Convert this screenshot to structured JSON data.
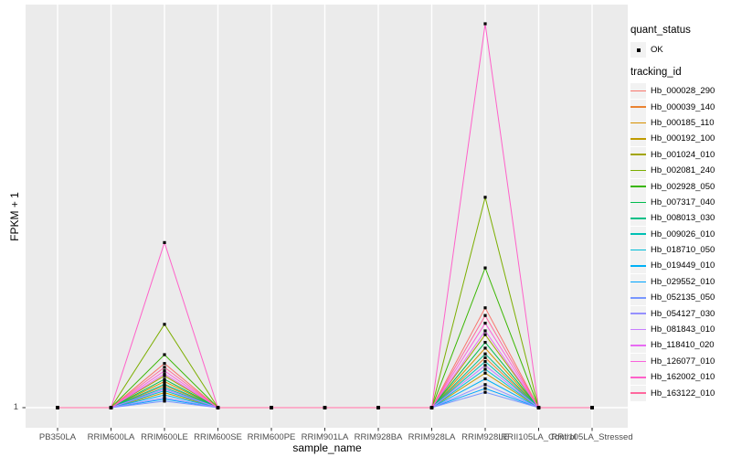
{
  "chart_data": {
    "type": "line",
    "title": "",
    "xlabel": "sample_name",
    "ylabel": "FPKM + 1",
    "y_tick_labels": [
      "1"
    ],
    "y_scale_note": "Only the y=1 baseline is labeled; series values below are relative heights above the FPKM+1 = 1 baseline (1.0 = tallest peak at RRIM928LE).",
    "grid": "white major gridlines on gray panel, vertical line per sample, horizontal line at y=1",
    "legend_position": "right",
    "marker_shape": "small black square",
    "categories": [
      "PB350LA",
      "RRIM600LA",
      "RRIM600LE",
      "RRIM600SE",
      "RRIM600PE",
      "RRIM901LA",
      "RRIM928BA",
      "RRIM928LA",
      "RRIM928LE",
      "RRII105LA_Control",
      "RRII105LA_Stressed"
    ],
    "legend": {
      "quant_status_title": "quant_status",
      "quant_status_items": [
        {
          "label": "OK",
          "marker": "point"
        }
      ],
      "tracking_id_title": "tracking_id"
    },
    "colors": {
      "panel_background": "#EBEBEB",
      "gridline": "#FFFFFF",
      "legend_key_background": "#F2F2F2",
      "marker": "#000000",
      "tick_label": "#4D4D4D",
      "axis_tick": "#333333"
    },
    "series": [
      {
        "name": "Hb_000028_290",
        "color": "#F8766D",
        "values": [
          0,
          0,
          0.115,
          0,
          0,
          0,
          0,
          0,
          0.26,
          0,
          0
        ]
      },
      {
        "name": "Hb_000039_140",
        "color": "#EA8331",
        "values": [
          0,
          0,
          0.057,
          0,
          0,
          0,
          0,
          0,
          0.13,
          0,
          0
        ]
      },
      {
        "name": "Hb_000185_110",
        "color": "#D89000",
        "values": [
          0,
          0,
          0.068,
          0,
          0,
          0,
          0,
          0,
          0.155,
          0,
          0
        ]
      },
      {
        "name": "Hb_000192_100",
        "color": "#C09B00",
        "values": [
          0,
          0,
          0.039,
          0,
          0,
          0,
          0,
          0,
          0.09,
          0,
          0
        ]
      },
      {
        "name": "Hb_001024_010",
        "color": "#A3A500",
        "values": [
          0,
          0,
          0.083,
          0,
          0,
          0,
          0,
          0,
          0.19,
          0,
          0
        ]
      },
      {
        "name": "Hb_002081_240",
        "color": "#7CAE00",
        "values": [
          0,
          0,
          0.217,
          0,
          0,
          0,
          0,
          0,
          0.548,
          0,
          0
        ]
      },
      {
        "name": "Hb_002928_050",
        "color": "#39B600",
        "values": [
          0,
          0,
          0.138,
          0,
          0,
          0,
          0,
          0,
          0.364,
          0,
          0
        ]
      },
      {
        "name": "Hb_007317_040",
        "color": "#00BB4E",
        "values": [
          0,
          0,
          0.074,
          0,
          0,
          0,
          0,
          0,
          0.17,
          0,
          0
        ]
      },
      {
        "name": "Hb_008013_030",
        "color": "#00C087",
        "values": [
          0,
          0,
          0.061,
          0,
          0,
          0,
          0,
          0,
          0.14,
          0,
          0
        ]
      },
      {
        "name": "Hb_009026_010",
        "color": "#00C0B4",
        "values": [
          0,
          0,
          0.052,
          0,
          0,
          0,
          0,
          0,
          0.12,
          0,
          0
        ]
      },
      {
        "name": "Hb_018710_050",
        "color": "#00BCD8",
        "values": [
          0,
          0,
          0.044,
          0,
          0,
          0,
          0,
          0,
          0.1,
          0,
          0
        ]
      },
      {
        "name": "Hb_019449_010",
        "color": "#00B0F6",
        "values": [
          0,
          0,
          0.033,
          0,
          0,
          0,
          0,
          0,
          0.075,
          0,
          0
        ]
      },
      {
        "name": "Hb_029552_010",
        "color": "#00A5FF",
        "values": [
          0,
          0,
          0.022,
          0,
          0,
          0,
          0,
          0,
          0.05,
          0,
          0
        ]
      },
      {
        "name": "Hb_052135_050",
        "color": "#7997FF",
        "values": [
          0,
          0,
          0.017,
          0,
          0,
          0,
          0,
          0,
          0.04,
          0,
          0
        ]
      },
      {
        "name": "Hb_054127_030",
        "color": "#9590FF",
        "values": [
          0,
          0,
          0.026,
          0,
          0,
          0,
          0,
          0,
          0.06,
          0,
          0
        ]
      },
      {
        "name": "Hb_081843_010",
        "color": "#C77CFF",
        "values": [
          0,
          0,
          0.048,
          0,
          0,
          0,
          0,
          0,
          0.11,
          0,
          0
        ]
      },
      {
        "name": "Hb_118410_020",
        "color": "#E76BF3",
        "values": [
          0,
          0,
          0.088,
          0,
          0,
          0,
          0,
          0,
          0.2,
          0,
          0
        ]
      },
      {
        "name": "Hb_126077_010",
        "color": "#FA62DB",
        "values": [
          0,
          0,
          0.096,
          0,
          0,
          0,
          0,
          0,
          0.22,
          0,
          0
        ]
      },
      {
        "name": "Hb_162002_010",
        "color": "#FF61C9",
        "values": [
          0,
          0,
          0.43,
          0,
          0,
          0,
          0,
          0,
          1.0,
          0,
          0
        ]
      },
      {
        "name": "Hb_163122_010",
        "color": "#FF689E",
        "values": [
          0,
          0,
          0.105,
          0,
          0,
          0,
          0,
          0,
          0.24,
          0,
          0
        ]
      }
    ]
  }
}
